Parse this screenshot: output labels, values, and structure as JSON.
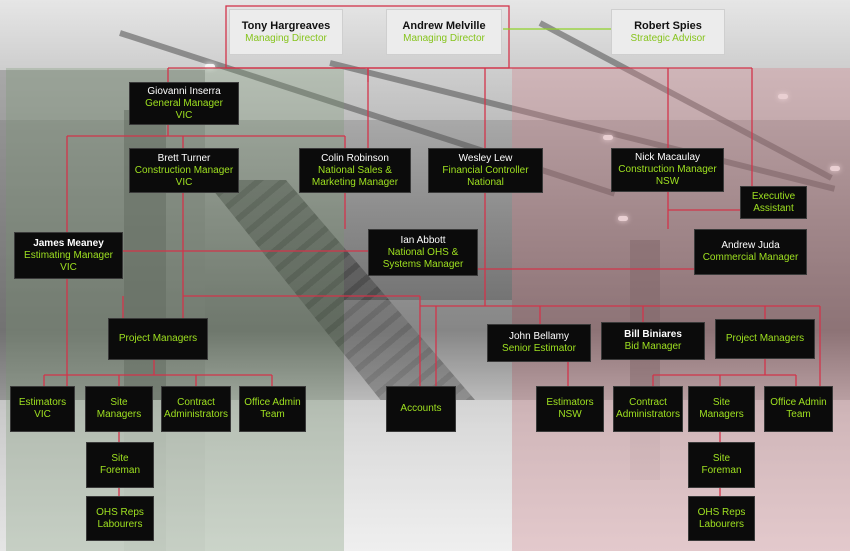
{
  "colors": {
    "line": "#d2344a",
    "accent": "#9ee020",
    "box": "#0b0b0b"
  },
  "directors": [
    {
      "name": "Tony Hargreaves",
      "role": "Managing Director"
    },
    {
      "name": "Andrew Melville",
      "role": "Managing Director"
    },
    {
      "name": "Robert Spies",
      "role": "Strategic Advisor"
    }
  ],
  "people": {
    "giovanni": {
      "name": "Giovanni Inserra",
      "role1": "General Manager",
      "role2": "VIC"
    },
    "brett": {
      "name": "Brett Turner",
      "role1": "Construction Manager",
      "role2": "VIC"
    },
    "colin": {
      "name": "Colin Robinson",
      "role1": "National Sales &",
      "role2": "Marketing Manager"
    },
    "wesley": {
      "name": "Wesley Lew",
      "role1": "Financial Controller",
      "role2": "National"
    },
    "nick": {
      "name": "Nick Macaulay",
      "role1": "Construction Manager",
      "role2": "NSW"
    },
    "exec": {
      "line1": "Executive",
      "line2": "Assistant"
    },
    "james": {
      "name": "James Meaney",
      "role1": "Estimating Manager",
      "role2": "VIC"
    },
    "ian": {
      "name": "Ian Abbott",
      "role1": "National OHS &",
      "role2": "Systems Manager"
    },
    "andrewj": {
      "name": "Andrew Juda",
      "role1": "Commercial Manager"
    },
    "john": {
      "name": "John Bellamy",
      "role1": "Senior Estimator"
    },
    "bill": {
      "name": "Bill Biniares",
      "role1": "Bid Manager"
    }
  },
  "groups": {
    "pm_left": "Project Managers",
    "pm_right": "Project Managers",
    "est_vic": [
      "Estimators",
      "VIC"
    ],
    "site_mgr_left": [
      "Site",
      "Managers"
    ],
    "contract_left": [
      "Contract",
      "Administrators"
    ],
    "office_left": [
      "Office Admin",
      "Team"
    ],
    "accounts": "Accounts",
    "est_nsw": [
      "Estimators",
      "NSW"
    ],
    "contract_right": [
      "Contract",
      "Administrators"
    ],
    "site_mgr_right": [
      "Site",
      "Managers"
    ],
    "office_right": [
      "Office Admin",
      "Team"
    ],
    "foreman_left": [
      "Site",
      "Foreman"
    ],
    "foreman_right": [
      "Site",
      "Foreman"
    ],
    "ohs_left": [
      "OHS Reps",
      "Labourers"
    ],
    "ohs_right": [
      "OHS Reps",
      "Labourers"
    ]
  }
}
